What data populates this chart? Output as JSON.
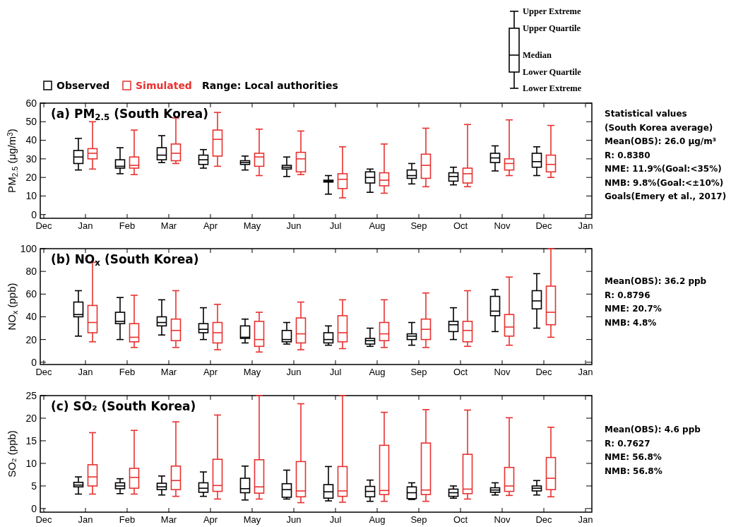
{
  "chart_data": [
    {
      "type": "box",
      "title": "(a) PM$_{2.5}$ (South Korea)",
      "subtitle": "Range: Local authorities",
      "ylabel": "PM$_{2.5}$ (μg/m$^{3}$)",
      "legend": "top",
      "categories": [
        "Dec",
        "Jan",
        "Feb",
        "Mar",
        "Apr",
        "May",
        "Jun",
        "Jul",
        "Aug",
        "Sep",
        "Oct",
        "Nov",
        "Dec",
        "Jan"
      ],
      "ylim": [
        -2,
        60
      ],
      "yticks": [
        0,
        10,
        20,
        30,
        40,
        50,
        60
      ],
      "annotations": [
        "Statistical values",
        "(South Korea average)",
        "Mean(OBS): 26.0 μg/m³",
        "R: 0.8380",
        "NME: 11.9%(Goal:<35%)",
        "NMB: 9.8%(Goal:<±10%)",
        "Goals(Emery et al., 2017)"
      ],
      "series": [
        {
          "name": "Observed",
          "color": "#000000",
          "boxes": [
            null,
            {
              "low": 24,
              "q1": 27.5,
              "median": 31,
              "q3": 34.5,
              "high": 41
            },
            {
              "low": 22,
              "q1": 25,
              "median": 26,
              "q3": 29.5,
              "high": 36
            },
            {
              "low": 28,
              "q1": 29.5,
              "median": 32,
              "q3": 36,
              "high": 42.5
            },
            {
              "low": 25,
              "q1": 27,
              "median": 29.5,
              "q3": 32,
              "high": 35
            },
            {
              "low": 24,
              "q1": 27,
              "median": 28,
              "q3": 29,
              "high": 31.5
            },
            {
              "low": 20.5,
              "q1": 24.5,
              "median": 25.5,
              "q3": 26.5,
              "high": 31
            },
            {
              "low": 11,
              "q1": 17.5,
              "median": 18,
              "q3": 18.5,
              "high": 21
            },
            {
              "low": 12,
              "q1": 17,
              "median": 20,
              "q3": 23,
              "high": 24.5
            },
            {
              "low": 16.5,
              "q1": 19.5,
              "median": 21,
              "q3": 24,
              "high": 27.5
            },
            {
              "low": 16,
              "q1": 18,
              "median": 20.5,
              "q3": 22.5,
              "high": 25.5
            },
            {
              "low": 23.5,
              "q1": 28,
              "median": 30.5,
              "q3": 33,
              "high": 37
            },
            {
              "low": 21,
              "q1": 25.5,
              "median": 28.5,
              "q3": 33,
              "high": 36.5
            },
            null
          ]
        },
        {
          "name": "Simulated",
          "color": "#e8312f",
          "boxes": [
            null,
            {
              "low": 24.5,
              "q1": 30,
              "median": 33,
              "q3": 35.5,
              "high": 50
            },
            {
              "low": 21.5,
              "q1": 25,
              "median": 26.5,
              "q3": 31,
              "high": 45.5
            },
            {
              "low": 27.5,
              "q1": 29,
              "median": 33,
              "q3": 38,
              "high": 52
            },
            {
              "low": 26,
              "q1": 31.5,
              "median": 40.5,
              "q3": 45.5,
              "high": 55
            },
            {
              "low": 21,
              "q1": 26,
              "median": 31,
              "q3": 33,
              "high": 46
            },
            {
              "low": 21.5,
              "q1": 23,
              "median": 30,
              "q3": 33.5,
              "high": 45
            },
            {
              "low": 9,
              "q1": 14,
              "median": 19,
              "q3": 22,
              "high": 36.5
            },
            {
              "low": 11.5,
              "q1": 15.5,
              "median": 18.5,
              "q3": 22.5,
              "high": 38
            },
            {
              "low": 15,
              "q1": 19.5,
              "median": 26.5,
              "q3": 32.5,
              "high": 46.5
            },
            {
              "low": 15,
              "q1": 17,
              "median": 22,
              "q3": 25,
              "high": 48.5
            },
            {
              "low": 21,
              "q1": 24,
              "median": 27.5,
              "q3": 30,
              "high": 51
            },
            {
              "low": 20,
              "q1": 23,
              "median": 27,
              "q3": 32,
              "high": 48
            },
            null
          ]
        }
      ]
    },
    {
      "type": "box",
      "title": "(b) NO$_{x}$ (South Korea)",
      "ylabel": "NO$_{x}$ (ppb)",
      "categories": [
        "Dec",
        "Jan",
        "Feb",
        "Mar",
        "Apr",
        "May",
        "Jun",
        "Jul",
        "Aug",
        "Sep",
        "Oct",
        "Nov",
        "Dec",
        "Jan"
      ],
      "ylim": [
        -2,
        100
      ],
      "yticks": [
        0,
        20,
        40,
        60,
        80,
        100
      ],
      "annotations": [
        "Mean(OBS): 36.2 ppb",
        "R: 0.8796",
        "NME: 20.7%",
        "NMB: 4.8%"
      ],
      "series": [
        {
          "color": "#000000",
          "boxes": [
            null,
            {
              "low": 23,
              "q1": 40,
              "median": 42,
              "q3": 53,
              "high": 63
            },
            {
              "low": 20,
              "q1": 34,
              "median": 36,
              "q3": 44,
              "high": 57
            },
            {
              "low": 24,
              "q1": 32,
              "median": 35,
              "q3": 40,
              "high": 55
            },
            {
              "low": 20,
              "q1": 26,
              "median": 29,
              "q3": 34,
              "high": 48
            },
            {
              "low": 17,
              "q1": 21,
              "median": 22,
              "q3": 32,
              "high": 38
            },
            {
              "low": 16,
              "q1": 18,
              "median": 20,
              "q3": 28,
              "high": 35
            },
            {
              "low": 15,
              "q1": 17,
              "median": 20,
              "q3": 26,
              "high": 32
            },
            {
              "low": 14,
              "q1": 16,
              "median": 19,
              "q3": 21,
              "high": 30
            },
            {
              "low": 15,
              "q1": 20,
              "median": 23,
              "q3": 25,
              "high": 35
            },
            {
              "low": 20,
              "q1": 27,
              "median": 33,
              "q3": 36,
              "high": 48
            },
            {
              "low": 27,
              "q1": 41,
              "median": 45,
              "q3": 58,
              "high": 64
            },
            {
              "low": 30,
              "q1": 47,
              "median": 54,
              "q3": 63,
              "high": 78
            },
            null
          ]
        },
        {
          "color": "#e8312f",
          "boxes": [
            null,
            {
              "low": 18,
              "q1": 26,
              "median": 35,
              "q3": 50,
              "high": 88
            },
            {
              "low": 13,
              "q1": 18,
              "median": 22,
              "q3": 34,
              "high": 59
            },
            {
              "low": 13,
              "q1": 19,
              "median": 28,
              "q3": 38,
              "high": 63
            },
            {
              "low": 11,
              "q1": 17,
              "median": 26,
              "q3": 35,
              "high": 51
            },
            {
              "low": 9,
              "q1": 14,
              "median": 20,
              "q3": 36,
              "high": 44
            },
            {
              "low": 11,
              "q1": 17,
              "median": 25,
              "q3": 39,
              "high": 53
            },
            {
              "low": 12,
              "q1": 18,
              "median": 26,
              "q3": 41,
              "high": 55
            },
            {
              "low": 13,
              "q1": 19,
              "median": 25,
              "q3": 35,
              "high": 55
            },
            {
              "low": 13,
              "q1": 20,
              "median": 29,
              "q3": 38,
              "high": 61
            },
            {
              "low": 14,
              "q1": 18,
              "median": 28,
              "q3": 36,
              "high": 63
            },
            {
              "low": 15,
              "q1": 23,
              "median": 31,
              "q3": 42,
              "high": 75
            },
            {
              "low": 22,
              "q1": 33,
              "median": 44,
              "q3": 67,
              "high": 100
            },
            null
          ]
        }
      ]
    },
    {
      "type": "box",
      "title": "(c) SO₂ (South Korea)",
      "ylabel": "SO₂ (ppb)",
      "categories": [
        "Dec",
        "Jan",
        "Feb",
        "Mar",
        "Apr",
        "May",
        "Jun",
        "Jul",
        "Aug",
        "Sep",
        "Oct",
        "Nov",
        "Dec",
        "Jan"
      ],
      "ylim": [
        -0.8,
        25
      ],
      "yticks": [
        0,
        5,
        10,
        15,
        20,
        25
      ],
      "annotations": [
        "Mean(OBS): 4.6 ppb",
        "R: 0.7627",
        "NME: 56.8%",
        "NMB: 56.8%"
      ],
      "series": [
        {
          "color": "#000000",
          "boxes": [
            null,
            {
              "low": 3.2,
              "q1": 4.8,
              "median": 5.2,
              "q3": 5.8,
              "high": 7
            },
            {
              "low": 3.3,
              "q1": 4.4,
              "median": 5,
              "q3": 5.7,
              "high": 6.6
            },
            {
              "low": 3,
              "q1": 4.2,
              "median": 4.8,
              "q3": 5.6,
              "high": 7.2
            },
            {
              "low": 2.7,
              "q1": 3.6,
              "median": 4.5,
              "q3": 5.7,
              "high": 8.1
            },
            {
              "low": 1.9,
              "q1": 3.5,
              "median": 4.4,
              "q3": 6.7,
              "high": 9.4
            },
            {
              "low": 2.1,
              "q1": 2.5,
              "median": 4.2,
              "q3": 5.5,
              "high": 8.5
            },
            {
              "low": 1.7,
              "q1": 2.3,
              "median": 3.7,
              "q3": 5.3,
              "high": 9.3
            },
            {
              "low": 1.6,
              "q1": 2.6,
              "median": 3.8,
              "q3": 4.9,
              "high": 6.3
            },
            {
              "low": 2,
              "q1": 2.2,
              "median": 3.5,
              "q3": 4.8,
              "high": 5.7
            },
            {
              "low": 2.3,
              "q1": 2.7,
              "median": 3.5,
              "q3": 4.3,
              "high": 5
            },
            {
              "low": 3,
              "q1": 3.6,
              "median": 4.1,
              "q3": 4.6,
              "high": 5.7
            },
            {
              "low": 3,
              "q1": 3.9,
              "median": 4.5,
              "q3": 5,
              "high": 6.2
            },
            null
          ]
        },
        {
          "color": "#e8312f",
          "boxes": [
            null,
            {
              "low": 3.2,
              "q1": 5,
              "median": 7,
              "q3": 9.7,
              "high": 16.8
            },
            {
              "low": 3.2,
              "q1": 4.5,
              "median": 6.9,
              "q3": 8.9,
              "high": 17.3
            },
            {
              "low": 2.7,
              "q1": 4.2,
              "median": 6.2,
              "q3": 9.4,
              "high": 19.2
            },
            {
              "low": 2.1,
              "q1": 3.8,
              "median": 5.1,
              "q3": 10.9,
              "high": 20.7
            },
            {
              "low": 2.1,
              "q1": 3.4,
              "median": 4.8,
              "q3": 10.8,
              "high": 25
            },
            {
              "low": 1.3,
              "q1": 2.6,
              "median": 3.9,
              "q3": 10.4,
              "high": 23.2
            },
            {
              "low": 1.4,
              "q1": 2.7,
              "median": 3.9,
              "q3": 9.3,
              "high": 25
            },
            {
              "low": 1.6,
              "q1": 3.1,
              "median": 4,
              "q3": 14,
              "high": 21.3
            },
            {
              "low": 1.6,
              "q1": 3.1,
              "median": 4.1,
              "q3": 14.5,
              "high": 21.9
            },
            {
              "low": 2.1,
              "q1": 3.3,
              "median": 4.3,
              "q3": 12,
              "high": 21.8
            },
            {
              "low": 2.9,
              "q1": 3.8,
              "median": 5,
              "q3": 9.1,
              "high": 20.1
            },
            {
              "low": 2.6,
              "q1": 4.2,
              "median": 6.7,
              "q3": 11.3,
              "high": 18
            },
            null
          ]
        }
      ]
    },
    {
      "type": "other",
      "annotations": [
        "Upper Extreme",
        "Upper Quartile",
        "Median",
        "Lower Quartile",
        "Lower Extreme"
      ]
    }
  ]
}
